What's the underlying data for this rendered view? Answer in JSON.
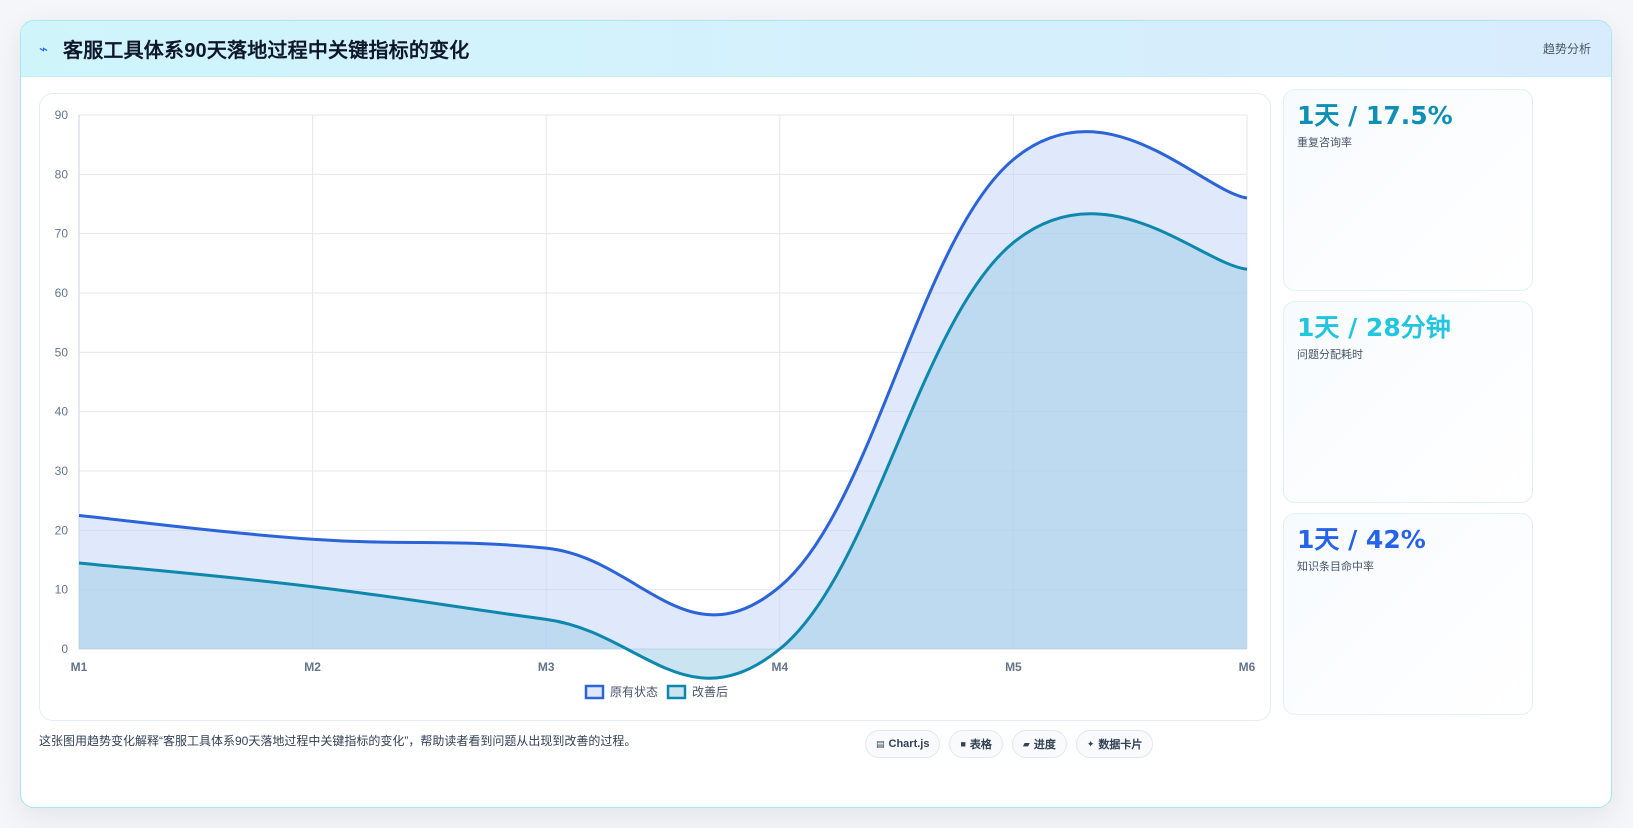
{
  "header": {
    "icon": "lightning-icon",
    "title": "客服工具体系90天落地过程中关键指标的变化",
    "tag": "趋势分析"
  },
  "stats": [
    {
      "value": "1天 / 17.5%",
      "label": "重复咨询率",
      "color": "#0e8fb3"
    },
    {
      "value": "1天 / 28分钟",
      "label": "问题分配耗时",
      "color": "#22c5e0"
    },
    {
      "value": "1天 / 42%",
      "label": "知识条目命中率",
      "color": "#2563eb"
    }
  ],
  "footer": {
    "description": "这张图用趋势变化解释“客服工具体系90天落地过程中关键指标的变化”，帮助读者看到问题从出现到改善的过程。",
    "chips": [
      {
        "icon": "chart-icon",
        "glyph": "▤",
        "label": "Chart.js"
      },
      {
        "icon": "table-icon",
        "glyph": "■",
        "label": "表格"
      },
      {
        "icon": "progress-icon",
        "glyph": "▰",
        "label": "进度"
      },
      {
        "icon": "sparkle-icon",
        "glyph": "✦",
        "label": "数据卡片"
      }
    ]
  },
  "chart_data": {
    "type": "area",
    "categories": [
      "M1",
      "M2",
      "M3",
      "M4",
      "M5",
      "M6"
    ],
    "series": [
      {
        "name": "原有状态",
        "values": [
          22.5,
          18.5,
          17,
          10.5,
          82.5,
          76
        ],
        "color": "#2b63d9",
        "fill": "rgba(191,211,248,0.5)"
      },
      {
        "name": "改善后",
        "values": [
          14.5,
          10.5,
          5,
          0,
          68.5,
          64
        ],
        "color": "#0e87ad",
        "fill": "rgba(160,205,232,0.55)"
      }
    ],
    "ylim": [
      0,
      90
    ],
    "yticks": [
      0,
      10,
      20,
      30,
      40,
      50,
      60,
      70,
      80,
      90
    ],
    "grid": true,
    "legend": "bottom"
  }
}
